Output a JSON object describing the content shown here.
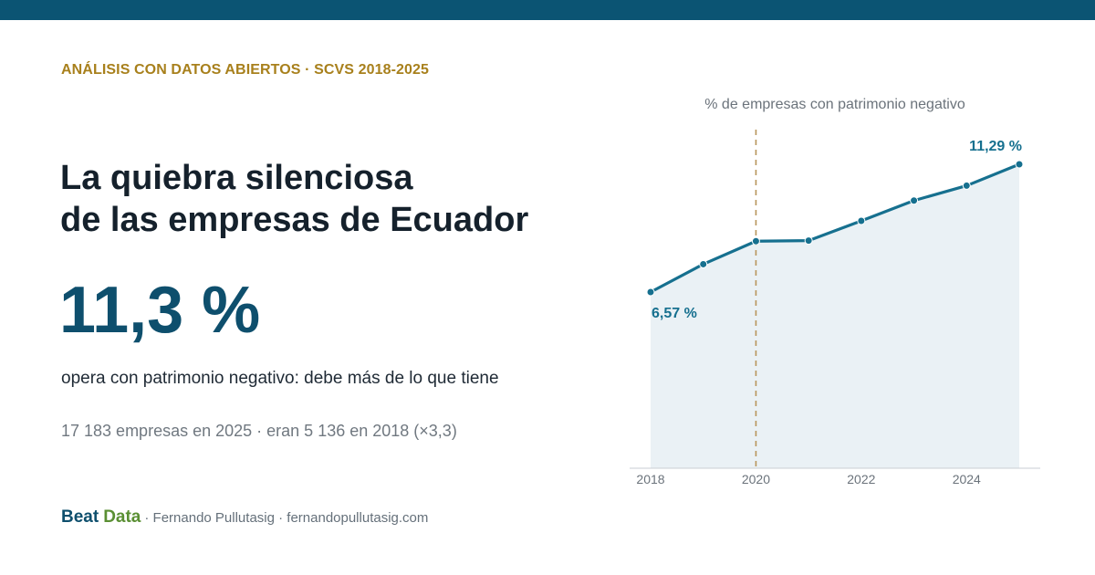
{
  "header": {
    "kicker": "ANÁLISIS CON DATOS ABIERTOS · SCVS 2018-2025",
    "title_line1": "La quiebra silenciosa",
    "title_line2": "de las empresas de Ecuador"
  },
  "stat": {
    "value": "11,3 %",
    "description": "opera con patrimonio negativo: debe más de lo que tiene",
    "note": "17 183 empresas en 2025 · eran 5 136 en 2018 (×3,3)"
  },
  "footer": {
    "brand_part1": "Beat",
    "brand_part2": "Data",
    "credits": "· Fernando Pullutasig · fernandopullutasig.com"
  },
  "colors": {
    "top_bar": "#0b5473",
    "kicker": "#a8801c",
    "accent": "#0e4f6d",
    "line": "#16708f",
    "area": "#eaf1f5",
    "brand_green": "#5a8f33",
    "marker": "#b8955a"
  },
  "chart_data": {
    "type": "area",
    "title": "% de empresas con patrimonio negativo",
    "x": [
      2018,
      2019,
      2020,
      2021,
      2022,
      2023,
      2024,
      2025
    ],
    "values": [
      6.57,
      7.6,
      8.45,
      8.47,
      9.2,
      9.95,
      10.5,
      11.29
    ],
    "xticks": [
      "2018",
      "2020",
      "2022",
      "2024"
    ],
    "xlim": [
      2018,
      2025
    ],
    "ylim": [
      0,
      11.29
    ],
    "grid": false,
    "reference_line": {
      "x": 2020,
      "style": "dashed"
    },
    "annotations": [
      {
        "x": 2018,
        "label": "6,57 %"
      },
      {
        "x": 2025,
        "label": "11,29 %"
      }
    ]
  }
}
